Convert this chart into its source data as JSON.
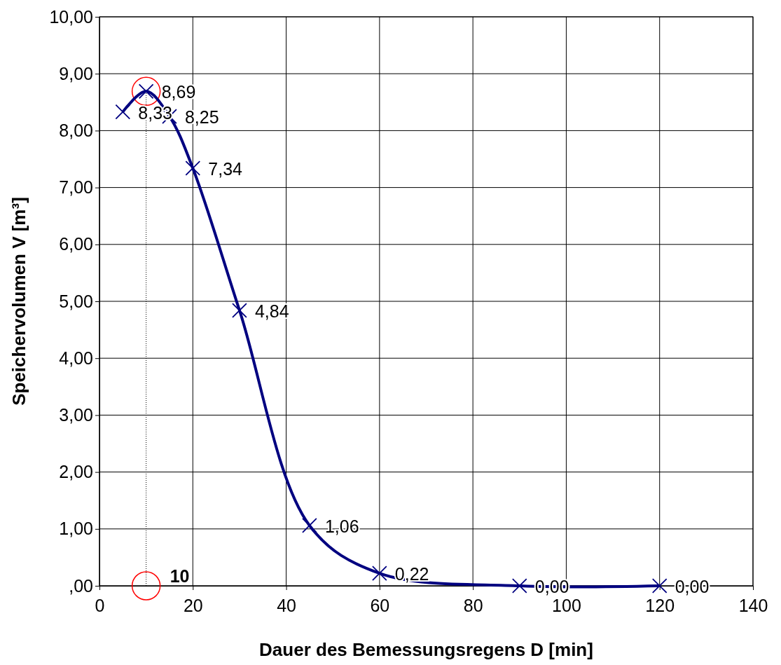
{
  "chart_data": {
    "type": "line",
    "xlabel": "Dauer des Bemessungsregens  D [min]",
    "ylabel": "Speichervolumen V [m³]",
    "x": [
      5,
      10,
      15,
      20,
      30,
      45,
      60,
      90,
      120
    ],
    "series": [
      {
        "color": "#000080",
        "values": [
          8.33,
          8.69,
          8.25,
          7.34,
          4.84,
          1.06,
          0.22,
          0.0,
          0.0
        ],
        "value_labels": [
          "8,33",
          "8,69",
          "8,25",
          "7,34",
          "4,84",
          "1,06",
          "0,22",
          "0,00",
          "0,00"
        ]
      }
    ],
    "xlim": [
      0,
      140
    ],
    "xticks": [
      0,
      20,
      40,
      60,
      80,
      100,
      120,
      140
    ],
    "ylim": [
      0,
      10
    ],
    "yticks": [
      {
        "value": 0,
        "label": ",00"
      },
      {
        "value": 1,
        "label": "1,00"
      },
      {
        "value": 2,
        "label": "2,00"
      },
      {
        "value": 3,
        "label": "3,00"
      },
      {
        "value": 4,
        "label": "4,00"
      },
      {
        "value": 5,
        "label": "5,00"
      },
      {
        "value": 6,
        "label": "6,00"
      },
      {
        "value": 7,
        "label": "7,00"
      },
      {
        "value": 8,
        "label": "8,00"
      },
      {
        "value": 9,
        "label": "9,00"
      },
      {
        "value": 10,
        "label": "10,00"
      }
    ],
    "ref_lines": [
      {
        "axis": "x",
        "value": 10,
        "label": "10",
        "color": "#000000",
        "line_style": "dotted"
      }
    ],
    "grid": true,
    "marker": "cross",
    "line_style": "solid"
  }
}
